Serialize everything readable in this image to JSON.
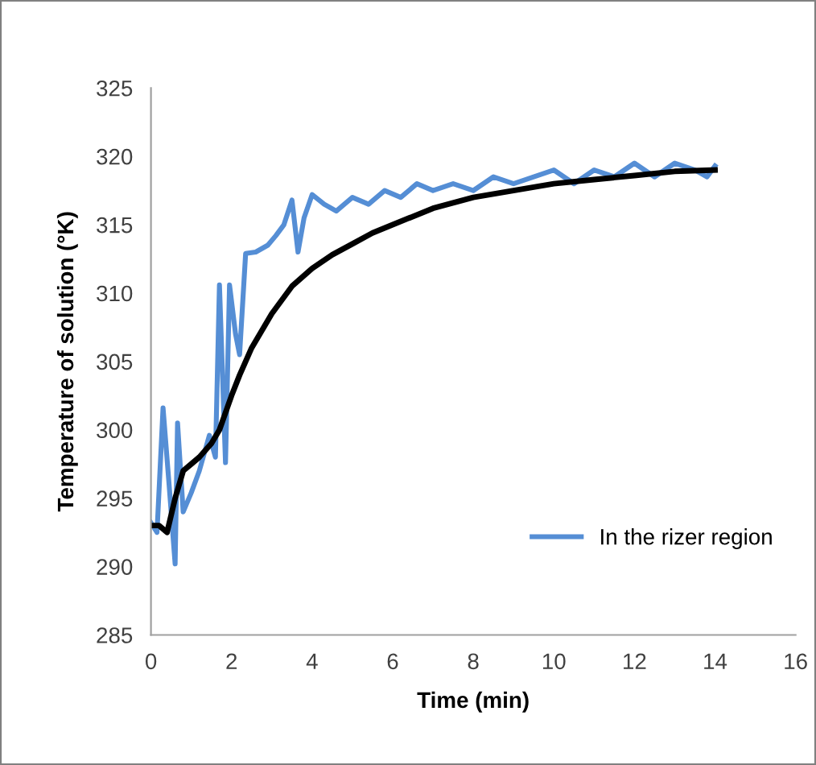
{
  "chart_data": {
    "type": "line",
    "xlabel": "Time (min)",
    "ylabel": "Temperature of solution (°K)",
    "xlim": [
      0,
      16
    ],
    "ylim": [
      285,
      325
    ],
    "xticks": [
      0,
      2,
      4,
      6,
      8,
      10,
      12,
      14,
      16
    ],
    "yticks": [
      285,
      290,
      295,
      300,
      305,
      310,
      315,
      320,
      325
    ],
    "grid": false,
    "legend": "bottom right",
    "line_style": "solid",
    "marker": "none",
    "series": [
      {
        "name": "In the rizer region",
        "color": "#558ed5",
        "x": [
          0,
          0.15,
          0.3,
          0.45,
          0.6,
          0.66,
          0.8,
          1.0,
          1.2,
          1.45,
          1.6,
          1.7,
          1.85,
          1.95,
          2.1,
          2.2,
          2.35,
          2.6,
          2.9,
          3.1,
          3.3,
          3.5,
          3.65,
          3.8,
          4.0,
          4.3,
          4.6,
          5.0,
          5.4,
          5.8,
          6.2,
          6.6,
          7.0,
          7.5,
          8.0,
          8.5,
          9.0,
          9.5,
          10.0,
          10.5,
          11.0,
          11.5,
          12.0,
          12.5,
          13.0,
          13.5,
          13.8,
          14.0
        ],
        "values": [
          293.2,
          292.5,
          301.6,
          296,
          290.2,
          300.5,
          294,
          295.4,
          297,
          299.6,
          298,
          310.6,
          297.6,
          310.6,
          307,
          305.5,
          312.9,
          313,
          313.5,
          314.2,
          315,
          316.8,
          313,
          315.5,
          317.2,
          316.5,
          316,
          317,
          316.5,
          317.5,
          317,
          318,
          317.5,
          318,
          317.5,
          318.5,
          318,
          318.5,
          319,
          318,
          319,
          318.5,
          319.5,
          318.5,
          319.5,
          319,
          318.5,
          319.3
        ]
      },
      {
        "color": "#000000",
        "x": [
          0,
          0.2,
          0.4,
          0.6,
          0.8,
          1.0,
          1.2,
          1.5,
          1.7,
          2.0,
          2.2,
          2.5,
          3.0,
          3.5,
          4.0,
          4.5,
          5.0,
          5.5,
          6.0,
          7.0,
          8.0,
          9.0,
          10.0,
          11.0,
          12.0,
          13.0,
          14.0
        ],
        "values": [
          293,
          293,
          292.5,
          295,
          297,
          297.5,
          298,
          299,
          300,
          302.5,
          304,
          306,
          308.5,
          310.5,
          311.8,
          312.8,
          313.6,
          314.4,
          315,
          316.2,
          317,
          317.5,
          318,
          318.3,
          318.6,
          318.9,
          319
        ]
      }
    ]
  }
}
